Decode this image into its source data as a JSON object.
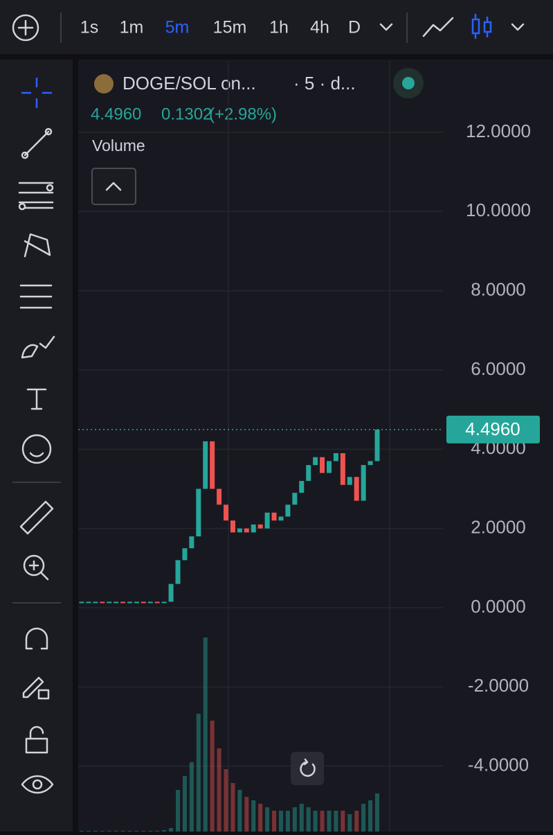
{
  "toolbar": {
    "intervals": [
      "1s",
      "1m",
      "5m",
      "15m",
      "1h",
      "4h",
      "D"
    ],
    "active": "5m"
  },
  "legend": {
    "symbol": "DOGE/SOL on...",
    "interval": "· 5 · d...",
    "price": "4.4960",
    "change": "0.1302",
    "change_pct": "(+2.98%)",
    "volume_label": "Volume"
  },
  "chart_data": {
    "type": "candlestick",
    "ylim": [
      -5.65,
      13.8
    ],
    "yticks": [
      {
        "value": 12,
        "label": "12.0000"
      },
      {
        "value": 10,
        "label": "10.0000"
      },
      {
        "value": 8,
        "label": "8.0000"
      },
      {
        "value": 6,
        "label": "6.0000"
      },
      {
        "value": 4,
        "label": "4.0000"
      },
      {
        "value": 2,
        "label": "2.0000"
      },
      {
        "value": 0,
        "label": "0.0000"
      },
      {
        "value": -2,
        "label": "-2.0000"
      },
      {
        "value": -4,
        "label": "-4.0000"
      }
    ],
    "closes": [
      0.15,
      0.15,
      0.15,
      0.14,
      0.15,
      0.15,
      0.14,
      0.15,
      0.15,
      0.14,
      0.15,
      0.14,
      0.15,
      0.6,
      1.2,
      1.5,
      1.8,
      3.0,
      4.2,
      3.0,
      2.6,
      2.2,
      1.9,
      2.0,
      1.9,
      2.1,
      2.0,
      2.4,
      2.2,
      2.3,
      2.6,
      2.9,
      3.2,
      3.6,
      3.8,
      3.4,
      3.7,
      3.9,
      3.1,
      3.3,
      2.7,
      3.6,
      3.7,
      4.496
    ],
    "volumes": [
      1,
      1,
      1,
      1,
      1,
      1,
      1,
      1,
      1,
      1,
      1,
      1,
      2,
      5,
      60,
      80,
      100,
      170,
      280,
      160,
      120,
      90,
      70,
      60,
      50,
      45,
      40,
      35,
      30,
      30,
      30,
      35,
      40,
      35,
      30,
      30,
      30,
      30,
      30,
      25,
      30,
      40,
      45,
      55
    ],
    "last_price": {
      "value": 4.496,
      "label": "4.4960"
    },
    "up_color": "#26a69a",
    "down_color": "#ef5350",
    "grid": true
  }
}
